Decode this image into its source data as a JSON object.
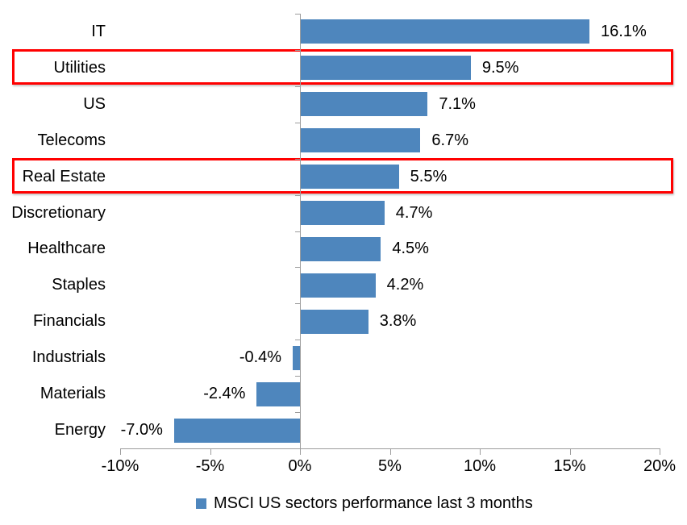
{
  "chart_data": {
    "type": "bar",
    "orientation": "horizontal",
    "title": "",
    "categories": [
      "IT",
      "Utilities",
      "US",
      "Telecoms",
      "Real Estate",
      "Discretionary",
      "Healthcare",
      "Staples",
      "Financials",
      "Industrials",
      "Materials",
      "Energy"
    ],
    "values": [
      16.1,
      9.5,
      7.1,
      6.7,
      5.5,
      4.7,
      4.5,
      4.2,
      3.8,
      -0.4,
      -2.4,
      -7.0
    ],
    "data_labels": [
      "16.1%",
      "9.5%",
      "7.1%",
      "6.7%",
      "5.5%",
      "4.7%",
      "4.5%",
      "4.2%",
      "3.8%",
      "-0.4%",
      "-2.4%",
      "-7.0%"
    ],
    "highlighted_categories": [
      "Utilities",
      "Real Estate"
    ],
    "x_axis": {
      "min": -10,
      "max": 20,
      "tick_values": [
        -10,
        -5,
        0,
        5,
        10,
        15,
        20
      ],
      "tick_labels": [
        "-10%",
        "-5%",
        "0%",
        "5%",
        "10%",
        "15%",
        "20%"
      ]
    },
    "legend": {
      "label": "MSCI US sectors performance last 3 months",
      "position": "bottom"
    },
    "grid": false,
    "colors": {
      "bar": "#4E86BD",
      "highlight_box": "#FF0000",
      "axis": "#9D9D9D",
      "text": "#000000"
    }
  }
}
